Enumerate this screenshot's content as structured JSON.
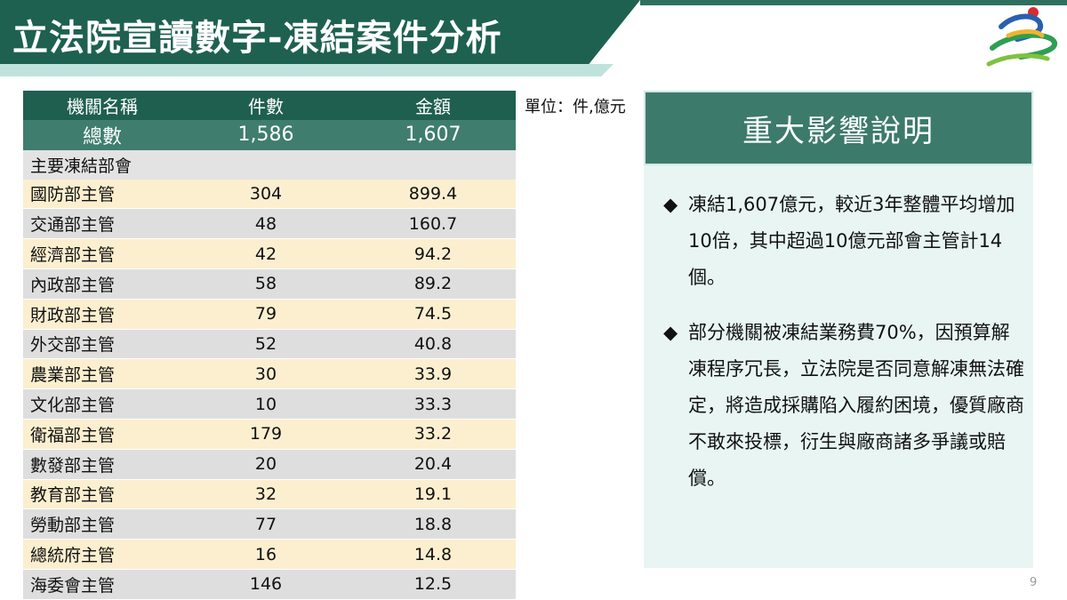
{
  "title": "立法院宣讀數字-凍結案件分析",
  "unit_note": "單位：件,億元",
  "table": {
    "headers": [
      "機關名稱",
      "件數",
      "金額"
    ],
    "total": {
      "label": "總數",
      "count": "1,586",
      "amount": "1,607"
    },
    "section_label": "主要凍結部會",
    "rows": [
      {
        "name": "國防部主管",
        "count": "304",
        "amount": "899.4"
      },
      {
        "name": "交通部主管",
        "count": "48",
        "amount": "160.7"
      },
      {
        "name": "經濟部主管",
        "count": "42",
        "amount": "94.2"
      },
      {
        "name": "內政部主管",
        "count": "58",
        "amount": "89.2"
      },
      {
        "name": "財政部主管",
        "count": "79",
        "amount": "74.5"
      },
      {
        "name": "外交部主管",
        "count": "52",
        "amount": "40.8"
      },
      {
        "name": "農業部主管",
        "count": "30",
        "amount": "33.9"
      },
      {
        "name": "文化部主管",
        "count": "10",
        "amount": "33.3"
      },
      {
        "name": "衛福部主管",
        "count": "179",
        "amount": "33.2"
      },
      {
        "name": "數發部主管",
        "count": "20",
        "amount": "20.4"
      },
      {
        "name": "教育部主管",
        "count": "32",
        "amount": "19.1"
      },
      {
        "name": "勞動部主管",
        "count": "77",
        "amount": "18.8"
      },
      {
        "name": "總統府主管",
        "count": "16",
        "amount": "14.8"
      },
      {
        "name": "海委會主管",
        "count": "146",
        "amount": "12.5"
      }
    ]
  },
  "panel": {
    "title": "重大影響說明",
    "bullet_mark": "◆",
    "bullets": [
      "凍結1,607億元，較近3年整體平均增加10倍，其中超過10億元部會主管計14個。",
      "部分機關被凍結業務費70%，因預算解凍程序冗長，立法院是否同意解凍無法確定，將造成採購陷入履約困境，優質廠商不敢來投標，衍生與廠商諸多爭議或賠償。"
    ]
  },
  "page_number": "9",
  "colors": {
    "primary": "#1e6150",
    "accent": "#3c7a6c",
    "row_alt": "#fbefcf",
    "panel_bg": "#e8f5f3"
  }
}
